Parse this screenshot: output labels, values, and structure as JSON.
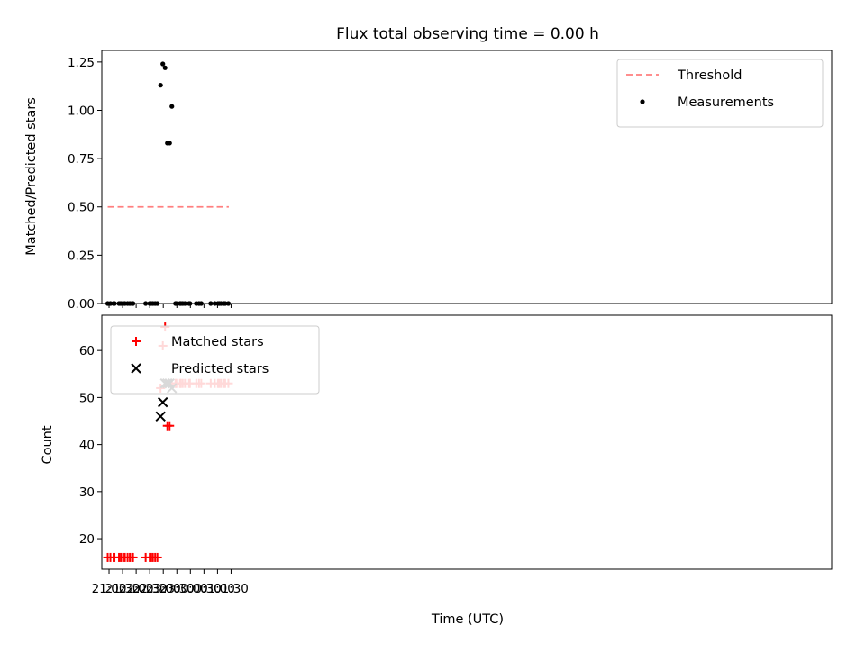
{
  "chart_data": [
    {
      "type": "scatter",
      "title": "Flux total observing time = 0.00 h",
      "xlabel": "",
      "ylabel": "Matched/Predicted stars",
      "ylim": [
        0,
        1.31
      ],
      "xlim": [
        "20:44",
        "23:39+1"
      ],
      "yticks": [
        "0.00",
        "0.25",
        "0.50",
        "0.75",
        "1.00",
        "1.25"
      ],
      "grid": false,
      "legend_position": "top-right",
      "legend": [
        "Threshold",
        "Measurements"
      ],
      "threshold": {
        "name": "Threshold",
        "value": 0.5,
        "x_start": "20:57",
        "x_end": "01:25",
        "color": "#ff7f7f",
        "style": "dashed"
      },
      "series": [
        {
          "name": "Measurements",
          "color": "#000000",
          "marker": "dot",
          "points": [
            [
              "20:57",
              0
            ],
            [
              "21:03",
              0
            ],
            [
              "21:10",
              0
            ],
            [
              "21:12",
              0
            ],
            [
              "21:22",
              0
            ],
            [
              "21:26",
              0
            ],
            [
              "21:31",
              0
            ],
            [
              "21:35",
              0
            ],
            [
              "21:41",
              0
            ],
            [
              "21:46",
              0
            ],
            [
              "21:51",
              0
            ],
            [
              "21:53",
              0
            ],
            [
              "22:21",
              0
            ],
            [
              "22:30",
              0
            ],
            [
              "22:33",
              0
            ],
            [
              "22:37",
              0
            ],
            [
              "22:42",
              0
            ],
            [
              "22:47",
              0
            ],
            [
              "22:54",
              1.13
            ],
            [
              "22:59",
              1.24
            ],
            [
              "23:04",
              1.22
            ],
            [
              "23:09",
              0.83
            ],
            [
              "23:14",
              0.83
            ],
            [
              "23:19",
              1.02
            ],
            [
              "23:27",
              0
            ],
            [
              "23:29",
              0
            ],
            [
              "23:37",
              0
            ],
            [
              "23:39",
              0
            ],
            [
              "23:43",
              0
            ],
            [
              "23:48",
              0
            ],
            [
              "23:57",
              0
            ],
            [
              "23:59",
              0
            ],
            [
              "00:13",
              0
            ],
            [
              "00:19",
              0
            ],
            [
              "00:24",
              0
            ],
            [
              "00:45",
              0
            ],
            [
              "00:54",
              0
            ],
            [
              "01:01",
              0
            ],
            [
              "01:04",
              0
            ],
            [
              "01:08",
              0
            ],
            [
              "01:14",
              0
            ],
            [
              "01:17",
              0
            ],
            [
              "01:24",
              0
            ]
          ]
        }
      ]
    },
    {
      "type": "scatter",
      "title": "",
      "xlabel": "Time (UTC)",
      "ylabel": "Count",
      "ylim": [
        13.5,
        67.5
      ],
      "xlim": [
        "20:44",
        "23:39+1"
      ],
      "yticks": [
        "20",
        "30",
        "40",
        "50",
        "60"
      ],
      "xticks": [
        "21:00",
        "21:30",
        "22:00",
        "22:30",
        "23:00",
        "23:30",
        "00:00",
        "00:30",
        "01:00",
        "01:30"
      ],
      "grid": false,
      "legend_position": "top-left",
      "legend": [
        "Matched stars",
        "Predicted stars"
      ],
      "series": [
        {
          "name": "Matched stars",
          "color": "#ff0000",
          "marker": "plus",
          "points": [
            [
              "20:57",
              16
            ],
            [
              "21:03",
              16
            ],
            [
              "21:10",
              16
            ],
            [
              "21:12",
              16
            ],
            [
              "21:22",
              16
            ],
            [
              "21:26",
              16
            ],
            [
              "21:31",
              16
            ],
            [
              "21:35",
              16
            ],
            [
              "21:41",
              16
            ],
            [
              "21:46",
              16
            ],
            [
              "21:51",
              16
            ],
            [
              "21:53",
              16
            ],
            [
              "22:21",
              16
            ],
            [
              "22:30",
              16
            ],
            [
              "22:33",
              16
            ],
            [
              "22:37",
              16
            ],
            [
              "22:42",
              16
            ],
            [
              "22:47",
              16
            ],
            [
              "22:54",
              52
            ],
            [
              "22:59",
              61
            ],
            [
              "23:04",
              65
            ],
            [
              "23:09",
              44
            ],
            [
              "23:14",
              44
            ],
            [
              "23:19",
              53
            ],
            [
              "23:27",
              53
            ],
            [
              "23:29",
              53
            ],
            [
              "23:37",
              53
            ],
            [
              "23:39",
              53
            ],
            [
              "23:43",
              53
            ],
            [
              "23:48",
              53
            ],
            [
              "23:57",
              53
            ],
            [
              "23:59",
              53
            ],
            [
              "00:13",
              53
            ],
            [
              "00:19",
              53
            ],
            [
              "00:24",
              53
            ],
            [
              "00:45",
              53
            ],
            [
              "00:54",
              53
            ],
            [
              "01:01",
              53
            ],
            [
              "01:04",
              53
            ],
            [
              "01:08",
              53
            ],
            [
              "01:14",
              53
            ],
            [
              "01:17",
              53
            ],
            [
              "01:24",
              53
            ]
          ]
        },
        {
          "name": "Predicted stars",
          "color": "#000000",
          "marker": "x",
          "points": [
            [
              "22:54",
              46
            ],
            [
              "22:59",
              49
            ],
            [
              "23:04",
              53
            ],
            [
              "23:09",
              53
            ],
            [
              "23:14",
              53
            ],
            [
              "23:19",
              52
            ]
          ]
        }
      ]
    }
  ]
}
